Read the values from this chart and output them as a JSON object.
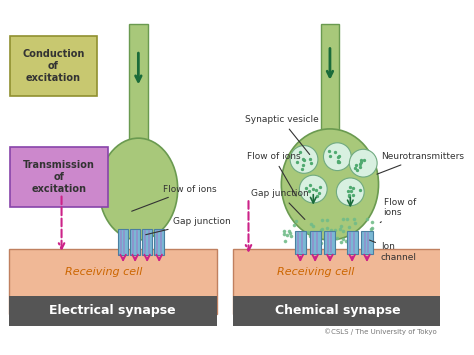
{
  "neuron_color": "#a8c87a",
  "neuron_edge": "#6a9a50",
  "receiving_color": "#f0b896",
  "receiving_edge": "#c08060",
  "gj_color": "#7ab8d4",
  "gj_edge": "#4a7fa0",
  "gj_inner": "#9090cc",
  "arrow_dn_color": "#1a6b3a",
  "arrow_ion_color": "#cc2288",
  "cond_box_color": "#c8c870",
  "cond_box_edge": "#909030",
  "trans_box_color": "#cc88cc",
  "trans_box_edge": "#8844aa",
  "title_box_color": "#555555",
  "text_orange": "#cc6600",
  "text_dark": "#333333",
  "text_gray": "#777777",
  "vesicle_fill": "#d8f0e0",
  "vesicle_edge": "#70aa80",
  "dot_color": "#50aa70",
  "scatter_color": "#70bb88",
  "copyright": "©CSLS / The University of Tokyo",
  "left_title": "Electrical synapse",
  "right_title": "Chemical synapse",
  "receiving": "Receiving cell",
  "label_conduction": "Conduction\nof\nexcitation",
  "label_transmission": "Transmission\nof\nexcitation",
  "label_flow_left": "Flow of ions",
  "label_gap": "Gap junction",
  "label_synaptic": "Synaptic vesicle",
  "label_neuro": "Neurotransmitters",
  "label_flow_right": "Flow of\nions",
  "label_ion": "Ion\nchannel",
  "bg_color": "#ffffff"
}
